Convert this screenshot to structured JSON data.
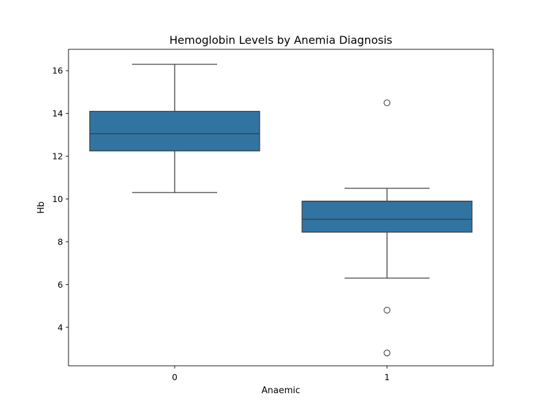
{
  "chart_data": {
    "type": "box",
    "title": "Hemoglobin Levels by Anemia Diagnosis",
    "xlabel": "Anaemic",
    "ylabel": "Hb",
    "categories": [
      "0",
      "1"
    ],
    "ylim": [
      2.2,
      17.0
    ],
    "yticks": [
      4,
      6,
      8,
      10,
      12,
      14,
      16
    ],
    "grid": false,
    "box_color": "#3274a1",
    "line_color": "#3f3f3f",
    "boxes": [
      {
        "category": "0",
        "whisker_low": 10.3,
        "q1": 12.25,
        "median": 13.05,
        "q3": 14.1,
        "whisker_high": 16.3,
        "outliers": []
      },
      {
        "category": "1",
        "whisker_low": 6.3,
        "q1": 8.45,
        "median": 9.05,
        "q3": 9.9,
        "whisker_high": 10.5,
        "outliers": [
          14.5,
          4.8,
          2.8
        ]
      }
    ]
  }
}
